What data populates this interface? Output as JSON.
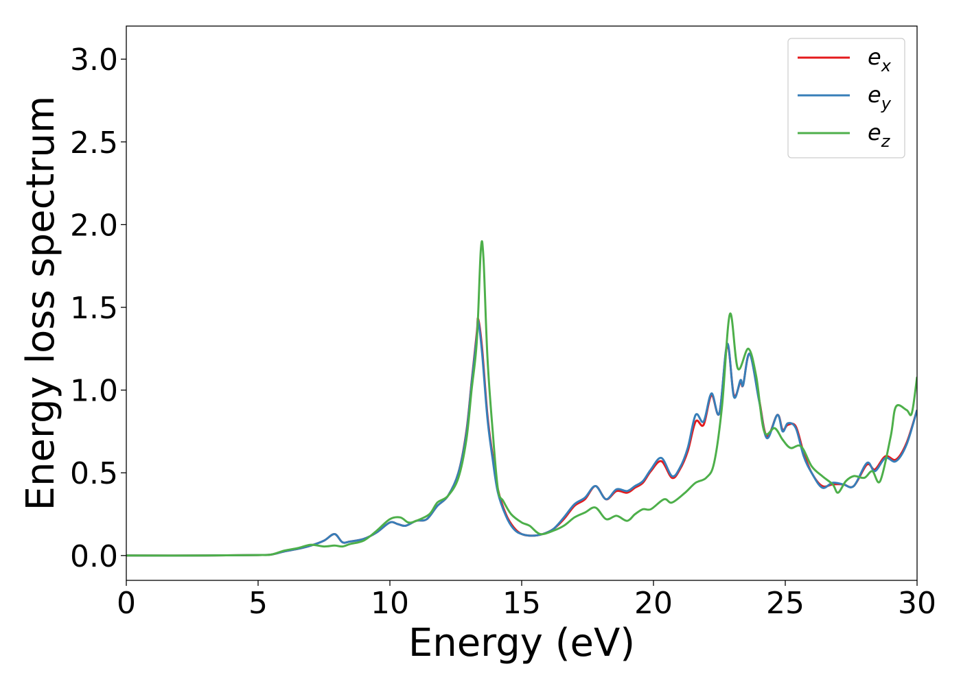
{
  "chart_data": {
    "type": "line",
    "title": "",
    "xlabel": "Energy (eV)",
    "ylabel": "Energy loss spectrum",
    "xlim": [
      0,
      30
    ],
    "ylim": [
      -0.15,
      3.2
    ],
    "xticks": [
      0,
      5,
      10,
      15,
      20,
      25,
      30
    ],
    "xtick_labels": [
      "0",
      "5",
      "10",
      "15",
      "20",
      "25",
      "30"
    ],
    "yticks": [
      0.0,
      0.5,
      1.0,
      1.5,
      2.0,
      2.5,
      3.0
    ],
    "ytick_labels": [
      "0.0",
      "0.5",
      "1.0",
      "1.5",
      "2.0",
      "2.5",
      "3.0"
    ],
    "grid": false,
    "legend_position": "top-right",
    "series": [
      {
        "name": "e_x",
        "legend_base": "e",
        "legend_sub": "x",
        "color": "#e41a1c",
        "points": [
          [
            0,
            0.0
          ],
          [
            3,
            0.0
          ],
          [
            5,
            0.003
          ],
          [
            5.5,
            0.006
          ],
          [
            6,
            0.025
          ],
          [
            6.5,
            0.04
          ],
          [
            7,
            0.06
          ],
          [
            7.5,
            0.09
          ],
          [
            7.9,
            0.13
          ],
          [
            8.2,
            0.08
          ],
          [
            8.5,
            0.085
          ],
          [
            9,
            0.1
          ],
          [
            9.5,
            0.14
          ],
          [
            10,
            0.2
          ],
          [
            10.3,
            0.19
          ],
          [
            10.6,
            0.18
          ],
          [
            11,
            0.21
          ],
          [
            11.4,
            0.22
          ],
          [
            11.8,
            0.3
          ],
          [
            12.2,
            0.36
          ],
          [
            12.6,
            0.5
          ],
          [
            12.9,
            0.75
          ],
          [
            13.1,
            1.05
          ],
          [
            13.3,
            1.35
          ],
          [
            13.35,
            1.43
          ],
          [
            13.5,
            1.25
          ],
          [
            13.7,
            0.85
          ],
          [
            13.9,
            0.6
          ],
          [
            14.1,
            0.4
          ],
          [
            14.4,
            0.25
          ],
          [
            14.7,
            0.17
          ],
          [
            15,
            0.13
          ],
          [
            15.4,
            0.12
          ],
          [
            15.8,
            0.13
          ],
          [
            16.2,
            0.16
          ],
          [
            16.6,
            0.22
          ],
          [
            17,
            0.3
          ],
          [
            17.4,
            0.34
          ],
          [
            17.8,
            0.42
          ],
          [
            18.2,
            0.34
          ],
          [
            18.6,
            0.39
          ],
          [
            19.0,
            0.38
          ],
          [
            19.3,
            0.41
          ],
          [
            19.6,
            0.44
          ],
          [
            19.9,
            0.51
          ],
          [
            20.3,
            0.57
          ],
          [
            20.7,
            0.47
          ],
          [
            21.0,
            0.52
          ],
          [
            21.3,
            0.63
          ],
          [
            21.6,
            0.81
          ],
          [
            21.9,
            0.79
          ],
          [
            22.2,
            0.97
          ],
          [
            22.5,
            0.86
          ],
          [
            22.8,
            1.27
          ],
          [
            23.05,
            0.97
          ],
          [
            23.3,
            1.05
          ],
          [
            23.4,
            1.03
          ],
          [
            23.65,
            1.22
          ],
          [
            24.0,
            0.95
          ],
          [
            24.3,
            0.72
          ],
          [
            24.7,
            0.85
          ],
          [
            24.9,
            0.76
          ],
          [
            25.1,
            0.79
          ],
          [
            25.4,
            0.78
          ],
          [
            25.7,
            0.62
          ],
          [
            26.0,
            0.5
          ],
          [
            26.4,
            0.42
          ],
          [
            26.8,
            0.43
          ],
          [
            27.2,
            0.43
          ],
          [
            27.6,
            0.42
          ],
          [
            28.1,
            0.55
          ],
          [
            28.4,
            0.52
          ],
          [
            28.8,
            0.6
          ],
          [
            29.2,
            0.58
          ],
          [
            29.6,
            0.68
          ],
          [
            30,
            0.88
          ]
        ]
      },
      {
        "name": "e_y",
        "legend_base": "e",
        "legend_sub": "y",
        "color": "#377eb8",
        "points": [
          [
            0,
            0.0
          ],
          [
            3,
            0.0
          ],
          [
            5,
            0.003
          ],
          [
            5.5,
            0.006
          ],
          [
            6,
            0.025
          ],
          [
            6.5,
            0.04
          ],
          [
            7,
            0.06
          ],
          [
            7.5,
            0.09
          ],
          [
            7.9,
            0.13
          ],
          [
            8.2,
            0.08
          ],
          [
            8.5,
            0.085
          ],
          [
            9,
            0.1
          ],
          [
            9.5,
            0.14
          ],
          [
            10,
            0.2
          ],
          [
            10.3,
            0.19
          ],
          [
            10.6,
            0.18
          ],
          [
            11,
            0.21
          ],
          [
            11.4,
            0.22
          ],
          [
            11.8,
            0.3
          ],
          [
            12.2,
            0.36
          ],
          [
            12.6,
            0.5
          ],
          [
            12.9,
            0.74
          ],
          [
            13.1,
            1.04
          ],
          [
            13.3,
            1.33
          ],
          [
            13.35,
            1.42
          ],
          [
            13.5,
            1.22
          ],
          [
            13.7,
            0.83
          ],
          [
            13.9,
            0.58
          ],
          [
            14.1,
            0.38
          ],
          [
            14.4,
            0.24
          ],
          [
            14.7,
            0.16
          ],
          [
            15,
            0.13
          ],
          [
            15.4,
            0.12
          ],
          [
            15.8,
            0.13
          ],
          [
            16.2,
            0.16
          ],
          [
            16.6,
            0.23
          ],
          [
            17,
            0.31
          ],
          [
            17.4,
            0.35
          ],
          [
            17.8,
            0.42
          ],
          [
            18.2,
            0.34
          ],
          [
            18.6,
            0.4
          ],
          [
            19.0,
            0.39
          ],
          [
            19.3,
            0.42
          ],
          [
            19.6,
            0.45
          ],
          [
            19.9,
            0.52
          ],
          [
            20.3,
            0.59
          ],
          [
            20.7,
            0.48
          ],
          [
            21.0,
            0.53
          ],
          [
            21.3,
            0.65
          ],
          [
            21.6,
            0.85
          ],
          [
            21.9,
            0.81
          ],
          [
            22.2,
            0.98
          ],
          [
            22.5,
            0.86
          ],
          [
            22.8,
            1.28
          ],
          [
            23.05,
            0.96
          ],
          [
            23.3,
            1.06
          ],
          [
            23.4,
            1.03
          ],
          [
            23.65,
            1.22
          ],
          [
            24.0,
            0.94
          ],
          [
            24.3,
            0.71
          ],
          [
            24.7,
            0.85
          ],
          [
            24.9,
            0.75
          ],
          [
            25.1,
            0.8
          ],
          [
            25.4,
            0.77
          ],
          [
            25.7,
            0.6
          ],
          [
            26.0,
            0.5
          ],
          [
            26.4,
            0.41
          ],
          [
            26.8,
            0.44
          ],
          [
            27.2,
            0.43
          ],
          [
            27.6,
            0.42
          ],
          [
            28.1,
            0.56
          ],
          [
            28.4,
            0.51
          ],
          [
            28.8,
            0.59
          ],
          [
            29.2,
            0.57
          ],
          [
            29.6,
            0.67
          ],
          [
            30,
            0.88
          ]
        ]
      },
      {
        "name": "e_z",
        "legend_base": "e",
        "legend_sub": "z",
        "color": "#4daf4a",
        "points": [
          [
            0,
            0.0
          ],
          [
            3,
            0.0
          ],
          [
            5,
            0.003
          ],
          [
            5.5,
            0.006
          ],
          [
            6,
            0.03
          ],
          [
            6.5,
            0.045
          ],
          [
            7,
            0.065
          ],
          [
            7.5,
            0.055
          ],
          [
            7.9,
            0.06
          ],
          [
            8.2,
            0.055
          ],
          [
            8.5,
            0.07
          ],
          [
            9,
            0.09
          ],
          [
            9.5,
            0.15
          ],
          [
            10,
            0.22
          ],
          [
            10.4,
            0.23
          ],
          [
            10.7,
            0.2
          ],
          [
            11,
            0.21
          ],
          [
            11.5,
            0.25
          ],
          [
            11.8,
            0.32
          ],
          [
            12.2,
            0.36
          ],
          [
            12.6,
            0.47
          ],
          [
            12.9,
            0.7
          ],
          [
            13.1,
            1.0
          ],
          [
            13.3,
            1.3
          ],
          [
            13.45,
            1.85
          ],
          [
            13.55,
            1.8
          ],
          [
            13.7,
            1.2
          ],
          [
            13.9,
            0.75
          ],
          [
            14.1,
            0.4
          ],
          [
            14.3,
            0.33
          ],
          [
            14.6,
            0.25
          ],
          [
            15,
            0.2
          ],
          [
            15.3,
            0.18
          ],
          [
            15.7,
            0.13
          ],
          [
            16.2,
            0.15
          ],
          [
            16.6,
            0.18
          ],
          [
            17,
            0.23
          ],
          [
            17.4,
            0.26
          ],
          [
            17.8,
            0.29
          ],
          [
            18.2,
            0.22
          ],
          [
            18.6,
            0.24
          ],
          [
            19.0,
            0.21
          ],
          [
            19.3,
            0.25
          ],
          [
            19.6,
            0.28
          ],
          [
            19.9,
            0.28
          ],
          [
            20.4,
            0.34
          ],
          [
            20.7,
            0.32
          ],
          [
            21.2,
            0.38
          ],
          [
            21.6,
            0.44
          ],
          [
            22.0,
            0.47
          ],
          [
            22.3,
            0.56
          ],
          [
            22.6,
            0.9
          ],
          [
            22.9,
            1.46
          ],
          [
            23.2,
            1.13
          ],
          [
            23.6,
            1.25
          ],
          [
            23.9,
            1.08
          ],
          [
            24.2,
            0.75
          ],
          [
            24.6,
            0.77
          ],
          [
            24.9,
            0.7
          ],
          [
            25.2,
            0.65
          ],
          [
            25.6,
            0.66
          ],
          [
            26.0,
            0.54
          ],
          [
            26.4,
            0.48
          ],
          [
            26.8,
            0.43
          ],
          [
            27.0,
            0.38
          ],
          [
            27.3,
            0.45
          ],
          [
            27.6,
            0.48
          ],
          [
            28.0,
            0.47
          ],
          [
            28.3,
            0.51
          ],
          [
            28.6,
            0.45
          ],
          [
            29.0,
            0.72
          ],
          [
            29.2,
            0.9
          ],
          [
            29.6,
            0.88
          ],
          [
            29.8,
            0.86
          ],
          [
            30,
            1.08
          ]
        ]
      }
    ]
  }
}
